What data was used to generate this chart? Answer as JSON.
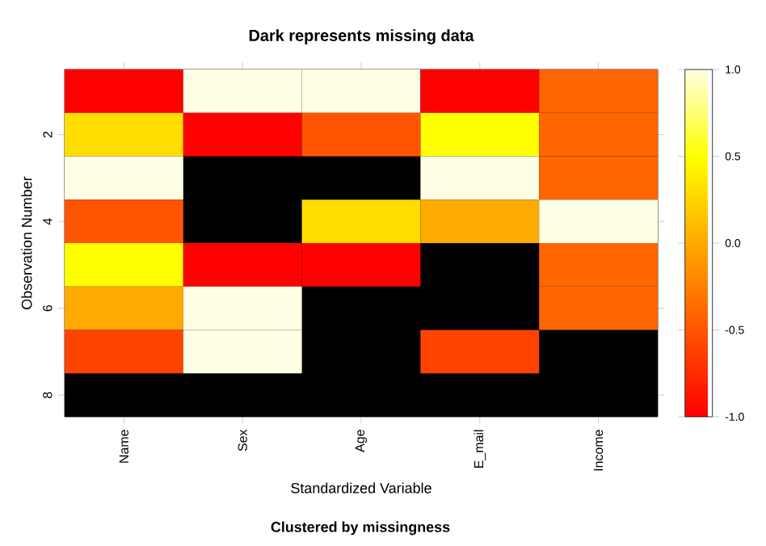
{
  "chart_data": {
    "type": "heatmap",
    "title": "Dark represents missing data",
    "subtitle": "Clustered by missingness",
    "xlabel": "Standardized Variable",
    "ylabel": "Observation Number",
    "categories": [
      "Name",
      "Sex",
      "Age",
      "E_mail",
      "Income"
    ],
    "y_categories": [
      null,
      "2",
      null,
      "4",
      null,
      "6",
      null,
      "8"
    ],
    "cells": [
      [
        -1.0,
        1.0,
        1.0,
        -1.0,
        -0.4
      ],
      [
        0.3,
        -1.0,
        -0.5,
        0.5,
        -0.4
      ],
      [
        1.0,
        null,
        null,
        1.0,
        -0.4
      ],
      [
        -0.5,
        null,
        0.3,
        0.0,
        1.0
      ],
      [
        0.5,
        -1.0,
        -1.0,
        null,
        -0.4
      ],
      [
        0.0,
        1.0,
        null,
        null,
        -0.4
      ],
      [
        -0.6,
        1.0,
        null,
        -0.6,
        null
      ],
      [
        null,
        null,
        null,
        null,
        null
      ]
    ],
    "clim": [
      -1,
      1
    ],
    "cticks": [
      {
        "value": -1,
        "label": "-1.0"
      },
      {
        "value": -0.5,
        "label": "-0.5"
      },
      {
        "value": 0,
        "label": "0.0"
      },
      {
        "value": 0.5,
        "label": "0.5"
      },
      {
        "value": 1,
        "label": "1.0"
      }
    ]
  }
}
